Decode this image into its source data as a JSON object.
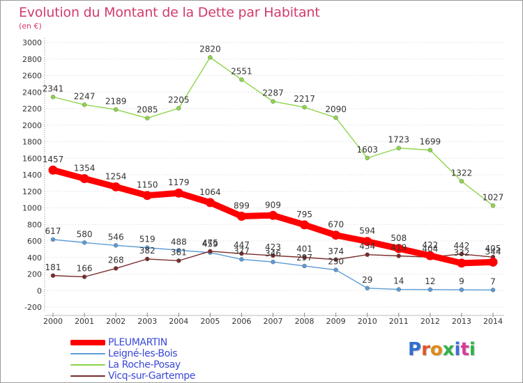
{
  "header": {
    "title": "Evolution du Montant de la Dette par Habitant",
    "subtitle": "(en €)"
  },
  "logo": {
    "text": "Proxiti",
    "colors": [
      "#2f6fd0",
      "#e0562a",
      "#e08a1a",
      "#2fb24a",
      "#3b6fd8",
      "#d83a9a",
      "#2fb24a"
    ]
  },
  "chart_data": {
    "type": "line",
    "title": "Evolution du Montant de la Dette par Habitant",
    "subtitle": "(en €)",
    "x": [
      "2000",
      "2001",
      "2002",
      "2003",
      "2004",
      "2005",
      "2006",
      "2007",
      "2008",
      "2009",
      "2010",
      "2011",
      "2012",
      "2013",
      "2014"
    ],
    "ylim": [
      -200,
      3000
    ],
    "yticks": [
      -200,
      0,
      200,
      400,
      600,
      800,
      1000,
      1200,
      1400,
      1600,
      1800,
      2000,
      2200,
      2400,
      2600,
      2800,
      3000
    ],
    "grid": "horizontal dotted",
    "legend_position": "bottom-left",
    "series": [
      {
        "name": "PLEUMARTIN",
        "color": "#ff0000",
        "values": [
          1457,
          1354,
          1254,
          1150,
          1179,
          1064,
          899,
          909,
          795,
          670,
          594,
          508,
          422,
          332,
          344
        ],
        "labels": [
          "1457",
          "1354",
          "1254",
          "1150",
          "1179",
          "1064",
          "899",
          "909",
          "795",
          "670",
          "594",
          "508",
          "422",
          "332",
          "344"
        ]
      },
      {
        "name": "Leigné-les-Bois",
        "color": "#5b9bd5",
        "values": [
          617,
          580,
          546,
          519,
          488,
          459,
          377,
          346,
          297,
          250,
          29,
          14,
          12,
          9,
          7
        ],
        "labels": [
          "617",
          "580",
          "546",
          "519",
          "488",
          "459",
          "377",
          "346",
          "297",
          "250",
          "29",
          "14",
          "12",
          "9",
          "7"
        ]
      },
      {
        "name": "La Roche-Posay",
        "color": "#8ed44a",
        "values": [
          2341,
          2247,
          2189,
          2085,
          2205,
          2820,
          2551,
          2287,
          2217,
          2090,
          1603,
          1723,
          1699,
          1322,
          1027
        ],
        "labels": [
          "2341",
          "2247",
          "2189",
          "2085",
          "2205",
          "2820",
          "2551",
          "2287",
          "2217",
          "2090",
          "1603",
          "1723",
          "1699",
          "1322",
          "1027"
        ]
      },
      {
        "name": "Vicq-sur-Gartempe",
        "color": "#7a2b2b",
        "values": [
          181,
          166,
          268,
          382,
          361,
          475,
          447,
          423,
          401,
          374,
          434,
          419,
          404,
          442,
          405
        ],
        "labels": [
          "181",
          "166",
          "268",
          "382",
          "361",
          "475",
          "447",
          "423",
          "401",
          "374",
          "434",
          "419",
          "404",
          "442",
          "405"
        ]
      }
    ]
  }
}
